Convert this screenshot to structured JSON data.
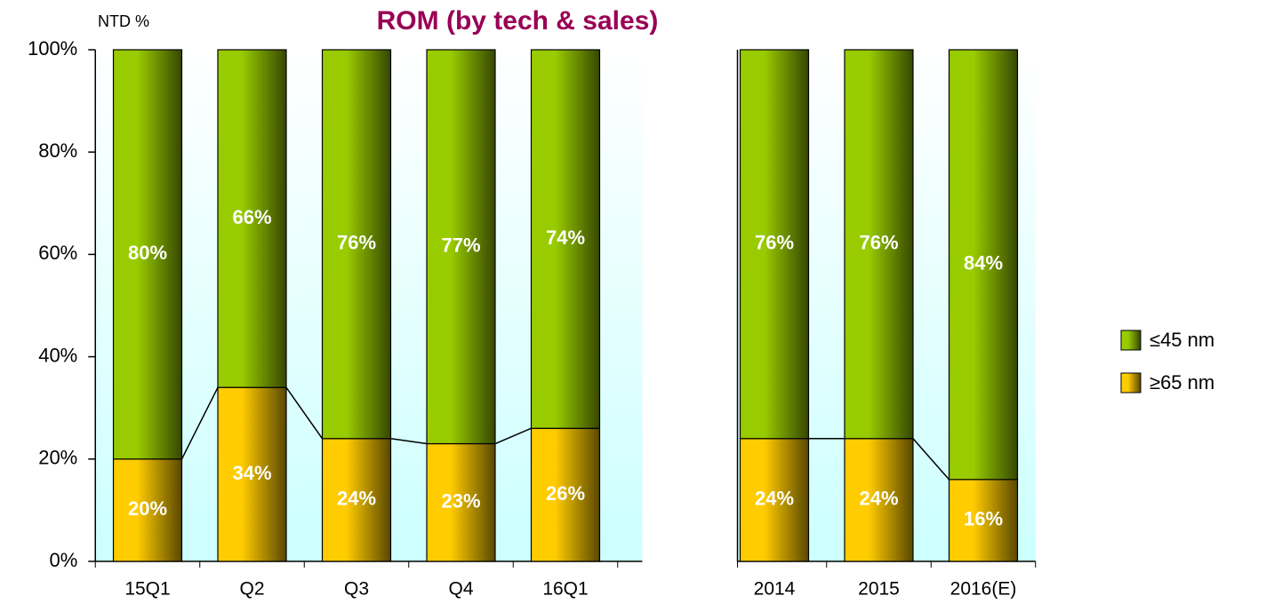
{
  "chart_data": {
    "type": "bar",
    "stacked": true,
    "title": "ROM (by tech & sales)",
    "y_axis_label": "NTD %",
    "categories": [
      "15Q1",
      "Q2",
      "Q3",
      "Q4",
      "16Q1",
      null,
      "2014",
      "2015",
      "2016(E)"
    ],
    "series": [
      {
        "name": "≥65 nm",
        "color": "#ffcc00",
        "values": [
          20,
          34,
          24,
          23,
          26,
          null,
          24,
          24,
          16
        ],
        "value_labels": [
          "20%",
          "34%",
          "24%",
          "23%",
          "26%",
          null,
          "24%",
          "24%",
          "16%"
        ]
      },
      {
        "name": "≤45 nm",
        "color": "#99cc00",
        "values": [
          80,
          66,
          76,
          77,
          74,
          null,
          76,
          76,
          84
        ],
        "value_labels": [
          "80%",
          "66%",
          "76%",
          "77%",
          "74%",
          null,
          "76%",
          "76%",
          "84%"
        ]
      }
    ],
    "ylim": [
      0,
      100
    ],
    "yticks": [
      {
        "value": 0,
        "label": "0%"
      },
      {
        "value": 20,
        "label": "20%"
      },
      {
        "value": 40,
        "label": "40%"
      },
      {
        "value": 60,
        "label": "60%"
      },
      {
        "value": 80,
        "label": "80%"
      },
      {
        "value": 100,
        "label": "100%"
      }
    ],
    "legend": "right"
  }
}
